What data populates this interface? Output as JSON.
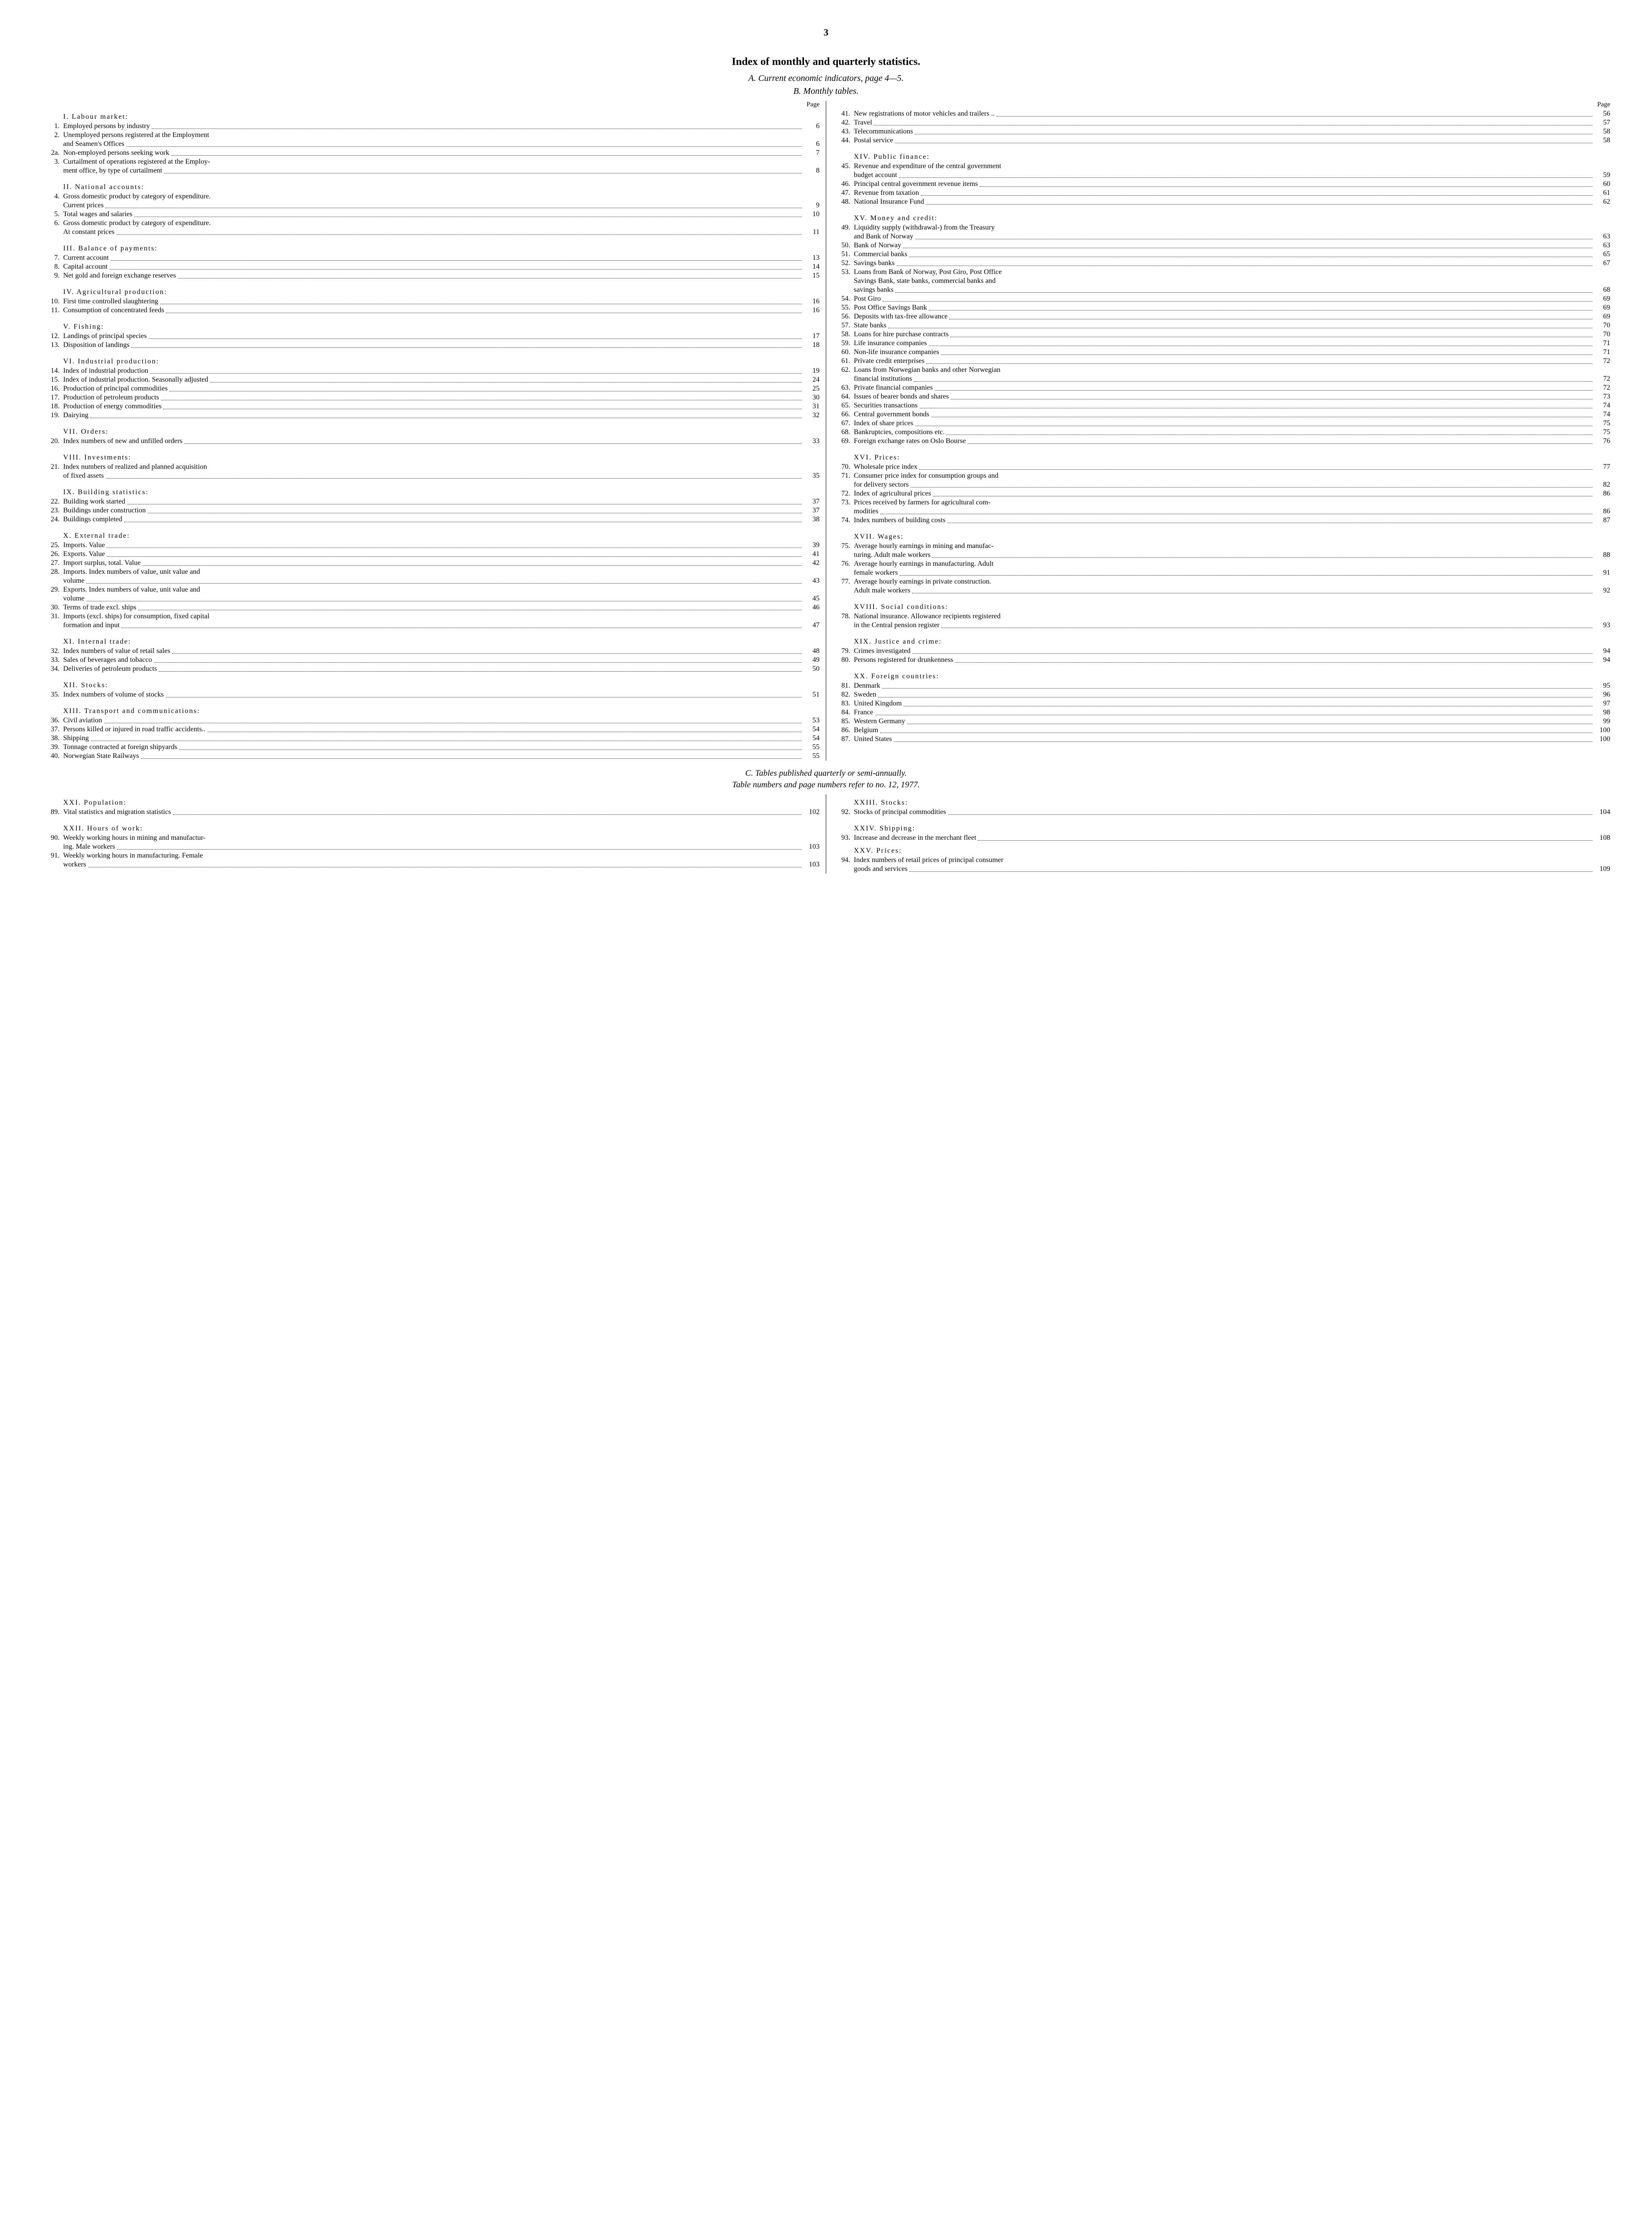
{
  "page_number": "3",
  "main_title": "Index of monthly and quarterly statistics.",
  "subtitle_a": "A. Current economic indicators, page 4—5.",
  "subtitle_b": "B. Monthly tables.",
  "page_label": "Page",
  "subtitle_c": "C. Tables published quarterly or semi-annually.",
  "subtitle_c2": "Table numbers and page numbers refer to no. 12, 1977.",
  "left": [
    {
      "type": "section",
      "text": "I. Labour market:"
    },
    {
      "type": "entry",
      "n": "1.",
      "label": "Employed persons by industry",
      "pg": "6"
    },
    {
      "type": "multi",
      "n": "2.",
      "lines": [
        "Unemployed persons registered at the Employment"
      ],
      "last": "and Seamen's Offices",
      "pg": "6"
    },
    {
      "type": "entry",
      "n": "2a.",
      "label": "Non-employed persons seeking work",
      "pg": "7"
    },
    {
      "type": "multi",
      "n": "3.",
      "lines": [
        "Curtailment of operations registered at the Employ-"
      ],
      "last": "ment office, by type of curtailment",
      "pg": "8"
    },
    {
      "type": "gap"
    },
    {
      "type": "section",
      "text": "II. National accounts:"
    },
    {
      "type": "multi",
      "n": "4.",
      "lines": [
        "Gross domestic product by category of expenditure."
      ],
      "last": "Current prices",
      "pg": "9"
    },
    {
      "type": "entry",
      "n": "5.",
      "label": "Total wages and salaries",
      "pg": "10"
    },
    {
      "type": "multi",
      "n": "6.",
      "lines": [
        "Gross domestic product by category of expenditure."
      ],
      "last": "At constant prices",
      "pg": "11"
    },
    {
      "type": "gap"
    },
    {
      "type": "section",
      "text": "III. Balance of payments:"
    },
    {
      "type": "entry",
      "n": "7.",
      "label": "Current account",
      "pg": "13"
    },
    {
      "type": "entry",
      "n": "8.",
      "label": "Capital account",
      "pg": "14"
    },
    {
      "type": "entry",
      "n": "9.",
      "label": "Net gold and foreign exchange reserves",
      "pg": "15"
    },
    {
      "type": "gap"
    },
    {
      "type": "section",
      "text": "IV. Agricultural production:"
    },
    {
      "type": "entry",
      "n": "10.",
      "label": "First time controlled slaughtering",
      "pg": "16"
    },
    {
      "type": "entry",
      "n": "11.",
      "label": "Consumption of concentrated feeds",
      "pg": "16"
    },
    {
      "type": "gap"
    },
    {
      "type": "section",
      "text": "V. Fishing:"
    },
    {
      "type": "entry",
      "n": "12.",
      "label": "Landings of principal species",
      "pg": "17"
    },
    {
      "type": "entry",
      "n": "13.",
      "label": "Disposition of landings",
      "pg": "18"
    },
    {
      "type": "gap"
    },
    {
      "type": "section",
      "text": "VI. Industrial production:"
    },
    {
      "type": "entry",
      "n": "14.",
      "label": "Index of industrial production",
      "pg": "19"
    },
    {
      "type": "entry",
      "n": "15.",
      "label": "Index of industrial production. Seasonally adjusted",
      "pg": "24"
    },
    {
      "type": "entry",
      "n": "16.",
      "label": "Production of principal commodities",
      "pg": "25"
    },
    {
      "type": "entry",
      "n": "17.",
      "label": "Production of petroleum products",
      "pg": "30"
    },
    {
      "type": "entry",
      "n": "18.",
      "label": "Production of energy commodities",
      "pg": "31"
    },
    {
      "type": "entry",
      "n": "19.",
      "label": "Dairying",
      "pg": "32"
    },
    {
      "type": "gap"
    },
    {
      "type": "section",
      "text": "VII. Orders:"
    },
    {
      "type": "entry",
      "n": "20.",
      "label": "Index numbers of new and unfilled orders",
      "pg": "33"
    },
    {
      "type": "gap"
    },
    {
      "type": "section",
      "text": "VIII. Investments:"
    },
    {
      "type": "multi",
      "n": "21.",
      "lines": [
        "Index numbers of realized and planned acquisition"
      ],
      "last": "of fixed assets",
      "pg": "35"
    },
    {
      "type": "gap"
    },
    {
      "type": "section",
      "text": "IX. Building statistics:"
    },
    {
      "type": "entry",
      "n": "22.",
      "label": "Building work started",
      "pg": "37"
    },
    {
      "type": "entry",
      "n": "23.",
      "label": "Buildings under construction",
      "pg": "37"
    },
    {
      "type": "entry",
      "n": "24.",
      "label": "Buildings completed",
      "pg": "38"
    },
    {
      "type": "gap"
    },
    {
      "type": "section",
      "text": "X. External trade:"
    },
    {
      "type": "entry",
      "n": "25.",
      "label": "Imports. Value",
      "pg": "39"
    },
    {
      "type": "entry",
      "n": "26.",
      "label": "Exports. Value",
      "pg": "41"
    },
    {
      "type": "entry",
      "n": "27.",
      "label": "Import surplus, total. Value",
      "pg": "42"
    },
    {
      "type": "multi",
      "n": "28.",
      "lines": [
        "Imports. Index numbers of value, unit value and"
      ],
      "last": "volume",
      "pg": "43"
    },
    {
      "type": "multi",
      "n": "29.",
      "lines": [
        "Exports. Index numbers of value, unit value and"
      ],
      "last": "volume",
      "pg": "45"
    },
    {
      "type": "entry",
      "n": "30.",
      "label": "Terms of trade excl. ships",
      "pg": "46"
    },
    {
      "type": "multi",
      "n": "31.",
      "lines": [
        "Imports (excl. ships) for consumption, fixed capital"
      ],
      "last": "formation and input",
      "pg": "47"
    },
    {
      "type": "gap"
    },
    {
      "type": "section",
      "text": "XI. Internal trade:"
    },
    {
      "type": "entry",
      "n": "32.",
      "label": "Index numbers of value of retail sales",
      "pg": "48"
    },
    {
      "type": "entry",
      "n": "33.",
      "label": "Sales of beverages and tobacco",
      "pg": "49"
    },
    {
      "type": "entry",
      "n": "34.",
      "label": "Deliveries of petroleum products",
      "pg": "50"
    },
    {
      "type": "gap"
    },
    {
      "type": "section",
      "text": "XII. Stocks:"
    },
    {
      "type": "entry",
      "n": "35.",
      "label": "Index numbers of volume of stocks",
      "pg": "51"
    },
    {
      "type": "gap"
    },
    {
      "type": "section",
      "text": "XIII. Transport and communications:"
    },
    {
      "type": "entry",
      "n": "36.",
      "label": "Civil aviation",
      "pg": "53"
    },
    {
      "type": "entry",
      "n": "37.",
      "label": "Persons killed or injured in road traffic accidents..",
      "pg": "54"
    },
    {
      "type": "entry",
      "n": "38.",
      "label": "Shipping",
      "pg": "54"
    },
    {
      "type": "entry",
      "n": "39.",
      "label": "Tonnage contracted at foreign shipyards",
      "pg": "55"
    },
    {
      "type": "entry",
      "n": "40.",
      "label": "Norwegian State Railways",
      "pg": "55"
    }
  ],
  "right": [
    {
      "type": "entry",
      "n": "41.",
      "label": "New registrations of motor vehicles and trailers  ..",
      "pg": "56"
    },
    {
      "type": "entry",
      "n": "42.",
      "label": "Travel",
      "pg": "57"
    },
    {
      "type": "entry",
      "n": "43.",
      "label": "Telecommunications",
      "pg": "58"
    },
    {
      "type": "entry",
      "n": "44.",
      "label": "Postal service",
      "pg": "58"
    },
    {
      "type": "gap"
    },
    {
      "type": "section",
      "text": "XIV. Public finance:"
    },
    {
      "type": "multi",
      "n": "45.",
      "lines": [
        "Revenue and expenditure of the central government"
      ],
      "last": "budget account",
      "pg": "59"
    },
    {
      "type": "entry",
      "n": "46.",
      "label": "Principal central government revenue items",
      "pg": "60"
    },
    {
      "type": "entry",
      "n": "47.",
      "label": "Revenue from taxation",
      "pg": "61"
    },
    {
      "type": "entry",
      "n": "48.",
      "label": "National Insurance Fund",
      "pg": "62"
    },
    {
      "type": "gap"
    },
    {
      "type": "section",
      "text": "XV. Money and credit:"
    },
    {
      "type": "multi",
      "n": "49.",
      "lines": [
        "Liquidity supply (withdrawal-) from the Treasury"
      ],
      "last": "and Bank of Norway",
      "pg": "63"
    },
    {
      "type": "entry",
      "n": "50.",
      "label": "Bank of Norway",
      "pg": "63"
    },
    {
      "type": "entry",
      "n": "51.",
      "label": "Commercial banks",
      "pg": "65"
    },
    {
      "type": "entry",
      "n": "52.",
      "label": "Savings banks",
      "pg": "67"
    },
    {
      "type": "multi",
      "n": "53.",
      "lines": [
        "Loans from Bank of Norway, Post Giro, Post Office",
        "Savings Bank, state banks, commercial banks and"
      ],
      "last": "savings banks",
      "pg": "68"
    },
    {
      "type": "entry",
      "n": "54.",
      "label": "Post Giro",
      "pg": "69"
    },
    {
      "type": "entry",
      "n": "55.",
      "label": "Post Office Savings Bank",
      "pg": "69"
    },
    {
      "type": "entry",
      "n": "56.",
      "label": "Deposits with tax-free allowance",
      "pg": "69"
    },
    {
      "type": "entry",
      "n": "57.",
      "label": "State banks",
      "pg": "70"
    },
    {
      "type": "entry",
      "n": "58.",
      "label": "Loans for hire purchase contracts",
      "pg": "70"
    },
    {
      "type": "entry",
      "n": "59.",
      "label": "Life insurance companies",
      "pg": "71"
    },
    {
      "type": "entry",
      "n": "60.",
      "label": "Non-life insurance companies",
      "pg": "71"
    },
    {
      "type": "entry",
      "n": "61.",
      "label": "Private credit enterprises",
      "pg": "72"
    },
    {
      "type": "multi",
      "n": "62.",
      "lines": [
        "Loans from Norwegian banks and other Norwegian"
      ],
      "last": "financial institutions",
      "pg": "72"
    },
    {
      "type": "entry",
      "n": "63.",
      "label": "Private financial companies",
      "pg": "72"
    },
    {
      "type": "entry",
      "n": "64.",
      "label": "Issues of bearer bonds and shares",
      "pg": "73"
    },
    {
      "type": "entry",
      "n": "65.",
      "label": "Securities transactions",
      "pg": "74"
    },
    {
      "type": "entry",
      "n": "66.",
      "label": "Central government bonds",
      "pg": "74"
    },
    {
      "type": "entry",
      "n": "67.",
      "label": "Index of share prices",
      "pg": "75"
    },
    {
      "type": "entry",
      "n": "68.",
      "label": "Bankruptcies, compositions etc.",
      "pg": "75"
    },
    {
      "type": "entry",
      "n": "69.",
      "label": "Foreign exchange rates on Oslo Bourse",
      "pg": "76"
    },
    {
      "type": "gap"
    },
    {
      "type": "section",
      "text": "XVI. Prices:"
    },
    {
      "type": "entry",
      "n": "70.",
      "label": "Wholesale price index",
      "pg": "77"
    },
    {
      "type": "multi",
      "n": "71.",
      "lines": [
        "Consumer price index for consumption groups and"
      ],
      "last": "for delivery sectors",
      "pg": "82"
    },
    {
      "type": "entry",
      "n": "72.",
      "label": "Index of agricultural prices",
      "pg": "86"
    },
    {
      "type": "multi",
      "n": "73.",
      "lines": [
        "Prices received by farmers for agricultural com-"
      ],
      "last": "modities",
      "pg": "86"
    },
    {
      "type": "entry",
      "n": "74.",
      "label": "Index numbers of building costs",
      "pg": "87"
    },
    {
      "type": "gap"
    },
    {
      "type": "section",
      "text": "XVII. Wages:"
    },
    {
      "type": "multi",
      "n": "75.",
      "lines": [
        "Average hourly earnings in mining and manufac-"
      ],
      "last": "turing. Adult male workers",
      "pg": "88"
    },
    {
      "type": "multi",
      "n": "76.",
      "lines": [
        "Average hourly earnings in manufacturing. Adult"
      ],
      "last": "female workers",
      "pg": "91"
    },
    {
      "type": "multi",
      "n": "77.",
      "lines": [
        "Average hourly earnings in private construction."
      ],
      "last": "Adult male workers",
      "pg": "92"
    },
    {
      "type": "gap"
    },
    {
      "type": "section",
      "text": "XVIII. Social conditions:"
    },
    {
      "type": "multi",
      "n": "78.",
      "lines": [
        "National insurance. Allowance recipients registered"
      ],
      "last": "in the Central pension register",
      "pg": "93"
    },
    {
      "type": "gap"
    },
    {
      "type": "section",
      "text": "XIX. Justice and crime:"
    },
    {
      "type": "entry",
      "n": "79.",
      "label": "Crimes investigated",
      "pg": "94"
    },
    {
      "type": "entry",
      "n": "80.",
      "label": "Persons registered for drunkenness",
      "pg": "94"
    },
    {
      "type": "gap"
    },
    {
      "type": "section",
      "text": "XX. Foreign countries:"
    },
    {
      "type": "entry",
      "n": "81.",
      "label": "Denmark",
      "pg": "95"
    },
    {
      "type": "entry",
      "n": "82.",
      "label": "Sweden",
      "pg": "96"
    },
    {
      "type": "entry",
      "n": "83.",
      "label": "United Kingdom",
      "pg": "97"
    },
    {
      "type": "entry",
      "n": "84.",
      "label": "France",
      "pg": "98"
    },
    {
      "type": "entry",
      "n": "85.",
      "label": "Western Germany",
      "pg": "99"
    },
    {
      "type": "entry",
      "n": "86.",
      "label": "Belgium",
      "pg": "100"
    },
    {
      "type": "entry",
      "n": "87.",
      "label": "United States",
      "pg": "100"
    }
  ],
  "bottom_left": [
    {
      "type": "section",
      "text": "XXI. Population:"
    },
    {
      "type": "entry",
      "n": "89.",
      "label": "Vital statistics and migration statistics",
      "pg": "102"
    },
    {
      "type": "gap"
    },
    {
      "type": "section",
      "text": "XXII. Hours of work:"
    },
    {
      "type": "multi",
      "n": "90.",
      "lines": [
        "Weekly working hours in mining and manufactur-"
      ],
      "last": "ing. Male workers",
      "pg": "103"
    },
    {
      "type": "multi",
      "n": "91.",
      "lines": [
        "Weekly working hours in manufacturing. Female"
      ],
      "last": "workers",
      "pg": "103"
    }
  ],
  "bottom_right": [
    {
      "type": "section",
      "text": "XXIII. Stocks:"
    },
    {
      "type": "entry",
      "n": "92.",
      "label": "Stocks of principal commodities",
      "pg": "104"
    },
    {
      "type": "gap"
    },
    {
      "type": "section",
      "text": "XXIV. Shipping:"
    },
    {
      "type": "entry",
      "n": "93.",
      "label": "Increase and decrease in the merchant fleet",
      "pg": "108"
    },
    {
      "type": "section",
      "text": "XXV. Prices:"
    },
    {
      "type": "multi",
      "n": "94.",
      "lines": [
        "Index numbers of retail prices of principal consumer"
      ],
      "last": "goods and services",
      "pg": "109"
    }
  ]
}
